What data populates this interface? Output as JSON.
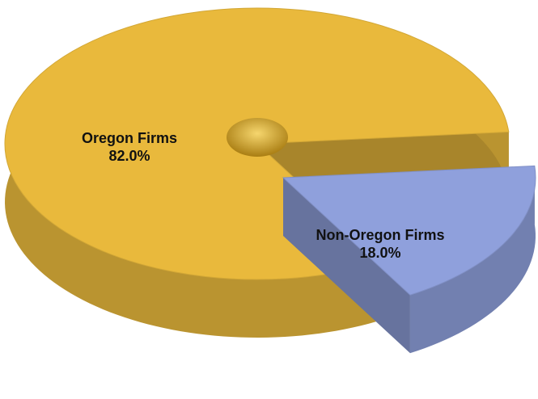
{
  "chart_data": {
    "type": "pie",
    "categories": [
      "Oregon Firms",
      "Non-Oregon Firms"
    ],
    "values": [
      82.0,
      18.0
    ],
    "value_labels": [
      "82.0%",
      "18.0%"
    ],
    "colors": [
      "#e9b93c",
      "#8fa0dc"
    ]
  }
}
